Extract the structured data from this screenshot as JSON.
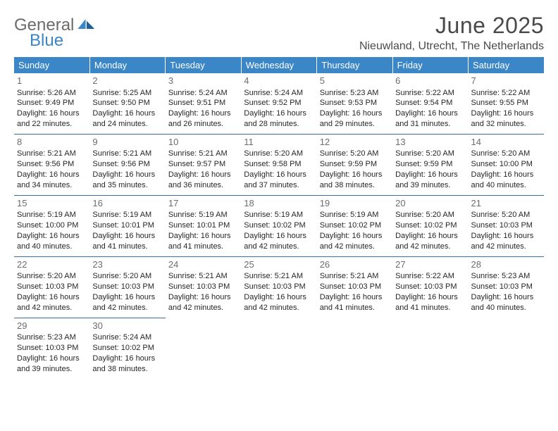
{
  "brand": {
    "word1": "General",
    "word2": "Blue"
  },
  "title": "June 2025",
  "location": "Nieuwland, Utrecht, The Netherlands",
  "colors": {
    "header_bg": "#3b86c7",
    "header_fg": "#ffffff",
    "row_divider": "#3b6ea0",
    "daynum": "#6d6d6d",
    "body_text": "#262626",
    "logo_gray": "#6b6b6b",
    "logo_blue": "#3b86c7",
    "page_bg": "#ffffff"
  },
  "typography": {
    "title_fontsize": 32,
    "location_fontsize": 16,
    "weekday_fontsize": 13,
    "daynum_fontsize": 13,
    "cell_fontsize": 11,
    "logo_fontsize": 24,
    "font_family": "Arial"
  },
  "weekdays": [
    "Sunday",
    "Monday",
    "Tuesday",
    "Wednesday",
    "Thursday",
    "Friday",
    "Saturday"
  ],
  "weeks": [
    [
      {
        "n": "1",
        "sr": "5:26 AM",
        "ss": "9:49 PM",
        "dl": "16 hours and 22 minutes."
      },
      {
        "n": "2",
        "sr": "5:25 AM",
        "ss": "9:50 PM",
        "dl": "16 hours and 24 minutes."
      },
      {
        "n": "3",
        "sr": "5:24 AM",
        "ss": "9:51 PM",
        "dl": "16 hours and 26 minutes."
      },
      {
        "n": "4",
        "sr": "5:24 AM",
        "ss": "9:52 PM",
        "dl": "16 hours and 28 minutes."
      },
      {
        "n": "5",
        "sr": "5:23 AM",
        "ss": "9:53 PM",
        "dl": "16 hours and 29 minutes."
      },
      {
        "n": "6",
        "sr": "5:22 AM",
        "ss": "9:54 PM",
        "dl": "16 hours and 31 minutes."
      },
      {
        "n": "7",
        "sr": "5:22 AM",
        "ss": "9:55 PM",
        "dl": "16 hours and 32 minutes."
      }
    ],
    [
      {
        "n": "8",
        "sr": "5:21 AM",
        "ss": "9:56 PM",
        "dl": "16 hours and 34 minutes."
      },
      {
        "n": "9",
        "sr": "5:21 AM",
        "ss": "9:56 PM",
        "dl": "16 hours and 35 minutes."
      },
      {
        "n": "10",
        "sr": "5:21 AM",
        "ss": "9:57 PM",
        "dl": "16 hours and 36 minutes."
      },
      {
        "n": "11",
        "sr": "5:20 AM",
        "ss": "9:58 PM",
        "dl": "16 hours and 37 minutes."
      },
      {
        "n": "12",
        "sr": "5:20 AM",
        "ss": "9:59 PM",
        "dl": "16 hours and 38 minutes."
      },
      {
        "n": "13",
        "sr": "5:20 AM",
        "ss": "9:59 PM",
        "dl": "16 hours and 39 minutes."
      },
      {
        "n": "14",
        "sr": "5:20 AM",
        "ss": "10:00 PM",
        "dl": "16 hours and 40 minutes."
      }
    ],
    [
      {
        "n": "15",
        "sr": "5:19 AM",
        "ss": "10:00 PM",
        "dl": "16 hours and 40 minutes."
      },
      {
        "n": "16",
        "sr": "5:19 AM",
        "ss": "10:01 PM",
        "dl": "16 hours and 41 minutes."
      },
      {
        "n": "17",
        "sr": "5:19 AM",
        "ss": "10:01 PM",
        "dl": "16 hours and 41 minutes."
      },
      {
        "n": "18",
        "sr": "5:19 AM",
        "ss": "10:02 PM",
        "dl": "16 hours and 42 minutes."
      },
      {
        "n": "19",
        "sr": "5:19 AM",
        "ss": "10:02 PM",
        "dl": "16 hours and 42 minutes."
      },
      {
        "n": "20",
        "sr": "5:20 AM",
        "ss": "10:02 PM",
        "dl": "16 hours and 42 minutes."
      },
      {
        "n": "21",
        "sr": "5:20 AM",
        "ss": "10:03 PM",
        "dl": "16 hours and 42 minutes."
      }
    ],
    [
      {
        "n": "22",
        "sr": "5:20 AM",
        "ss": "10:03 PM",
        "dl": "16 hours and 42 minutes."
      },
      {
        "n": "23",
        "sr": "5:20 AM",
        "ss": "10:03 PM",
        "dl": "16 hours and 42 minutes."
      },
      {
        "n": "24",
        "sr": "5:21 AM",
        "ss": "10:03 PM",
        "dl": "16 hours and 42 minutes."
      },
      {
        "n": "25",
        "sr": "5:21 AM",
        "ss": "10:03 PM",
        "dl": "16 hours and 42 minutes."
      },
      {
        "n": "26",
        "sr": "5:21 AM",
        "ss": "10:03 PM",
        "dl": "16 hours and 41 minutes."
      },
      {
        "n": "27",
        "sr": "5:22 AM",
        "ss": "10:03 PM",
        "dl": "16 hours and 41 minutes."
      },
      {
        "n": "28",
        "sr": "5:23 AM",
        "ss": "10:03 PM",
        "dl": "16 hours and 40 minutes."
      }
    ],
    [
      {
        "n": "29",
        "sr": "5:23 AM",
        "ss": "10:03 PM",
        "dl": "16 hours and 39 minutes."
      },
      {
        "n": "30",
        "sr": "5:24 AM",
        "ss": "10:02 PM",
        "dl": "16 hours and 38 minutes."
      },
      null,
      null,
      null,
      null,
      null
    ]
  ],
  "labels": {
    "sunrise": "Sunrise: ",
    "sunset": "Sunset: ",
    "daylight": "Daylight: "
  }
}
